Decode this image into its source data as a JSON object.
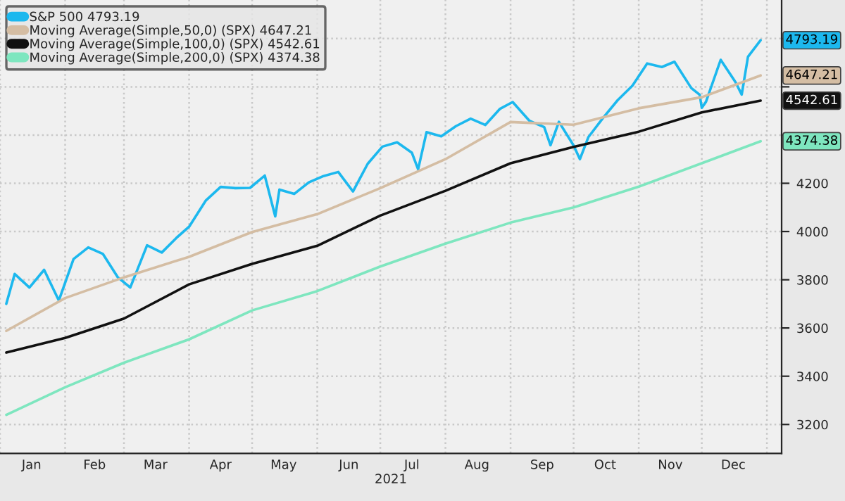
{
  "chart_data": {
    "type": "line",
    "xlabel": "2021",
    "series": [
      {
        "name": "S&P 500 4793.19",
        "color": "#1cb8ee",
        "x": [
          "2021-01-04",
          "2021-01-08",
          "2021-01-15",
          "2021-01-22",
          "2021-01-29",
          "2021-02-05",
          "2021-02-12",
          "2021-02-19",
          "2021-02-26",
          "2021-03-04",
          "2021-03-12",
          "2021-03-19",
          "2021-03-26",
          "2021-04-01",
          "2021-04-09",
          "2021-04-16",
          "2021-04-23",
          "2021-04-30",
          "2021-05-07",
          "2021-05-12",
          "2021-05-14",
          "2021-05-21",
          "2021-05-28",
          "2021-06-04",
          "2021-06-11",
          "2021-06-18",
          "2021-06-25",
          "2021-07-02",
          "2021-07-09",
          "2021-07-16",
          "2021-07-19",
          "2021-07-23",
          "2021-07-30",
          "2021-08-06",
          "2021-08-13",
          "2021-08-20",
          "2021-08-27",
          "2021-09-02",
          "2021-09-10",
          "2021-09-17",
          "2021-09-20",
          "2021-09-24",
          "2021-10-01",
          "2021-10-04",
          "2021-10-08",
          "2021-10-15",
          "2021-10-22",
          "2021-10-29",
          "2021-11-05",
          "2021-11-12",
          "2021-11-18",
          "2021-11-26",
          "2021-11-30",
          "2021-12-01",
          "2021-12-03",
          "2021-12-10",
          "2021-12-17",
          "2021-12-20",
          "2021-12-23",
          "2021-12-29"
        ],
        "values": [
          3700,
          3824,
          3768,
          3841,
          3714,
          3886,
          3934,
          3907,
          3811,
          3768,
          3943,
          3913,
          3974,
          4020,
          4129,
          4185,
          4180,
          4181,
          4232,
          4063,
          4174,
          4156,
          4204,
          4230,
          4247,
          4166,
          4281,
          4352,
          4370,
          4327,
          4258,
          4412,
          4395,
          4437,
          4468,
          4442,
          4509,
          4537,
          4459,
          4433,
          4358,
          4455,
          4357,
          4300,
          4391,
          4471,
          4545,
          4605,
          4697,
          4682,
          4704,
          4595,
          4567,
          4513,
          4538,
          4712,
          4620,
          4568,
          4725,
          4793.19
        ]
      },
      {
        "name": "Moving Average(Simple,50,0) (SPX) 4647.21",
        "color": "#d4bda3",
        "x": [
          "2021-01-04",
          "2021-02-01",
          "2021-03-01",
          "2021-04-01",
          "2021-05-01",
          "2021-06-01",
          "2021-07-01",
          "2021-08-01",
          "2021-09-01",
          "2021-10-01",
          "2021-11-01",
          "2021-12-01",
          "2021-12-29"
        ],
        "values": [
          3588,
          3724,
          3810,
          3895,
          3998,
          4072,
          4180,
          4300,
          4454,
          4443,
          4511,
          4557,
          4647.21
        ]
      },
      {
        "name": "Moving Average(Simple,100,0) (SPX) 4542.61",
        "color": "#111111",
        "x": [
          "2021-01-04",
          "2021-02-01",
          "2021-03-01",
          "2021-04-01",
          "2021-05-01",
          "2021-06-01",
          "2021-07-01",
          "2021-08-01",
          "2021-09-01",
          "2021-10-01",
          "2021-11-01",
          "2021-12-01",
          "2021-12-29"
        ],
        "values": [
          3498,
          3559,
          3639,
          3781,
          3866,
          3941,
          4066,
          4169,
          4283,
          4351,
          4414,
          4494,
          4542.61
        ]
      },
      {
        "name": "Moving Average(Simple,200,0) (SPX) 4374.38",
        "color": "#7ee6bf",
        "x": [
          "2021-01-04",
          "2021-02-01",
          "2021-03-01",
          "2021-04-01",
          "2021-05-01",
          "2021-06-01",
          "2021-07-01",
          "2021-08-01",
          "2021-09-01",
          "2021-10-01",
          "2021-11-01",
          "2021-12-01",
          "2021-12-29"
        ],
        "values": [
          3240,
          3354,
          3456,
          3553,
          3673,
          3753,
          3855,
          3950,
          4037,
          4100,
          4186,
          4283,
          4374.38
        ]
      }
    ],
    "annotations": [
      {
        "text": "4793.19",
        "x": "2021-12-29",
        "y": 4793.19
      },
      {
        "text": "4647.21",
        "x": "2021-12-29",
        "y": 4647.21
      },
      {
        "text": "4542.61",
        "x": "2021-12-29",
        "y": 4542.61
      },
      {
        "text": "4374.38",
        "x": "2021-12-29",
        "y": 4374.38
      }
    ],
    "xlim": [
      "2021-01-01",
      "2022-01-08"
    ],
    "xticks": [
      {
        "value": "2021-01-01",
        "label": null
      },
      {
        "value": "2021-01-16",
        "label": "Jan"
      },
      {
        "value": "2021-02-01",
        "label": null
      },
      {
        "value": "2021-02-15",
        "label": "Feb"
      },
      {
        "value": "2021-03-01",
        "label": null
      },
      {
        "value": "2021-03-16",
        "label": "Mar"
      },
      {
        "value": "2021-04-01",
        "label": null
      },
      {
        "value": "2021-04-16",
        "label": "Apr"
      },
      {
        "value": "2021-05-01",
        "label": null
      },
      {
        "value": "2021-05-16",
        "label": "May"
      },
      {
        "value": "2021-06-01",
        "label": null
      },
      {
        "value": "2021-06-16",
        "label": "Jun"
      },
      {
        "value": "2021-07-01",
        "label": null
      },
      {
        "value": "2021-07-16",
        "label": "Jul"
      },
      {
        "value": "2021-08-01",
        "label": null
      },
      {
        "value": "2021-08-16",
        "label": "Aug"
      },
      {
        "value": "2021-09-01",
        "label": null
      },
      {
        "value": "2021-09-16",
        "label": "Sep"
      },
      {
        "value": "2021-10-01",
        "label": null
      },
      {
        "value": "2021-10-16",
        "label": "Oct"
      },
      {
        "value": "2021-11-01",
        "label": null
      },
      {
        "value": "2021-11-16",
        "label": "Nov"
      },
      {
        "value": "2021-12-01",
        "label": null
      },
      {
        "value": "2021-12-16",
        "label": "Dec"
      },
      {
        "value": "2022-01-01",
        "label": null
      }
    ],
    "ylim": [
      3080,
      4960
    ],
    "yticks": [
      3200,
      3400,
      3600,
      3800,
      4000,
      4200,
      {
        "value": 4400,
        "label": null
      },
      {
        "value": 4600,
        "label": null
      },
      {
        "value": 4800,
        "label": null
      }
    ],
    "grid": true,
    "legend": "top left",
    "line_style": "solid",
    "marker": "none"
  }
}
